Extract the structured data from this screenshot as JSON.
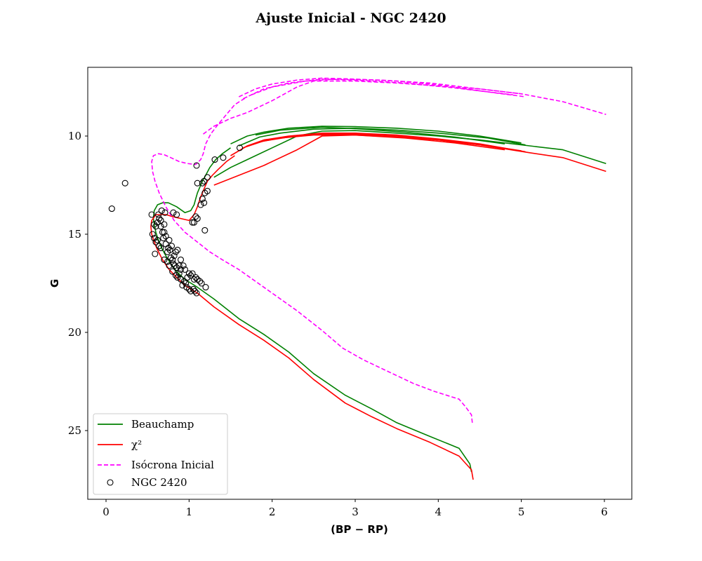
{
  "chart_data": {
    "type": "line",
    "title": "Ajuste Inicial - NGC 2420",
    "xlabel": "(BP − RP)",
    "ylabel": "G",
    "xlim": [
      -0.22,
      6.33
    ],
    "ylim": [
      28.5,
      6.5
    ],
    "y_inverted": true,
    "grid": false,
    "legend_position": "lower-left",
    "xticks": [
      0,
      1,
      2,
      3,
      4,
      5,
      6
    ],
    "yticks": [
      10,
      15,
      20,
      25
    ],
    "colors": {
      "beauchamp": "#008000",
      "chi2": "#ff0000",
      "initial": "#ff00ff",
      "data": "#000000"
    },
    "series": [
      {
        "name": "Beauchamp",
        "style": "solid",
        "color": "#008000",
        "segments": [
          {
            "x": [
              4.4,
              4.38,
              4.25,
              3.9,
              3.5,
              3.2,
              2.88,
              2.5,
              2.2,
              1.9,
              1.6,
              1.3,
              1.1,
              0.95,
              0.85,
              0.78,
              0.72,
              0.67,
              0.63,
              0.6,
              0.58,
              0.57,
              0.58,
              0.62,
              0.68,
              0.75,
              0.85,
              0.95,
              1.02,
              1.06,
              1.08,
              1.1,
              1.13,
              1.16,
              1.2,
              1.25,
              1.32,
              1.4,
              1.5
            ],
            "y": [
              27.1,
              26.7,
              25.9,
              25.3,
              24.6,
              23.9,
              23.2,
              22.1,
              21.0,
              20.1,
              19.3,
              18.3,
              17.7,
              17.3,
              16.9,
              16.5,
              16.1,
              15.7,
              15.3,
              14.9,
              14.5,
              14.2,
              13.8,
              13.5,
              13.4,
              13.4,
              13.6,
              13.9,
              13.8,
              13.5,
              13.2,
              12.9,
              12.6,
              12.3,
              12.0,
              11.6,
              11.2,
              10.9,
              10.6
            ]
          },
          {
            "x": [
              1.3,
              1.5,
              1.7,
              2.0,
              2.3,
              2.6,
              3.0,
              3.5,
              4.0,
              4.5,
              5.1,
              5.5,
              6.02
            ],
            "y": [
              12.1,
              11.6,
              11.2,
              10.6,
              10.0,
              9.75,
              9.72,
              9.85,
              10.0,
              10.2,
              10.5,
              10.7,
              11.4
            ]
          },
          {
            "x": [
              1.5,
              1.7,
              1.9,
              2.2,
              2.6,
              3.0,
              3.5,
              4.0,
              4.5,
              5.0
            ],
            "y": [
              10.4,
              10.0,
              9.8,
              9.6,
              9.5,
              9.52,
              9.6,
              9.75,
              10.0,
              10.35
            ]
          },
          {
            "x": [
              1.6,
              1.85,
              2.1,
              2.5,
              3.0,
              3.5,
              4.0,
              4.6,
              5.05
            ],
            "y": [
              10.5,
              10.05,
              9.85,
              9.65,
              9.6,
              9.7,
              9.85,
              10.1,
              10.45
            ]
          },
          {
            "x": [
              1.8,
              2.1,
              2.6,
              3.0,
              3.6,
              4.2,
              4.8
            ],
            "y": [
              9.95,
              9.7,
              9.55,
              9.62,
              9.8,
              10.05,
              10.4
            ]
          }
        ]
      },
      {
        "name": "χ²",
        "style": "solid",
        "color": "#ff0000",
        "segments": [
          {
            "x": [
              4.42,
              4.4,
              4.25,
              3.9,
              3.5,
              3.2,
              2.88,
              2.5,
              2.2,
              1.9,
              1.6,
              1.3,
              1.1,
              0.95,
              0.85,
              0.76,
              0.68,
              0.62,
              0.58,
              0.55,
              0.54,
              0.55,
              0.6,
              0.66,
              0.72,
              0.8,
              0.9,
              1.0,
              1.06,
              1.1,
              1.14,
              1.18,
              1.22,
              1.28,
              1.35,
              1.45,
              1.55
            ],
            "y": [
              27.5,
              27.0,
              26.3,
              25.6,
              24.9,
              24.3,
              23.6,
              22.4,
              21.3,
              20.4,
              19.6,
              18.7,
              18.0,
              17.6,
              17.2,
              16.8,
              16.3,
              15.8,
              15.4,
              15.0,
              14.6,
              14.3,
              14.0,
              14.0,
              14.0,
              14.1,
              14.2,
              14.3,
              14.0,
              13.6,
              13.1,
              12.7,
              12.3,
              12.0,
              11.7,
              11.3,
              11.0
            ]
          },
          {
            "x": [
              1.3,
              1.6,
              1.9,
              2.3,
              2.6,
              3.0,
              3.5,
              4.0,
              4.5,
              5.1,
              5.5,
              6.02
            ],
            "y": [
              12.5,
              12.0,
              11.5,
              10.7,
              10.0,
              9.95,
              10.05,
              10.2,
              10.45,
              10.85,
              11.1,
              11.8
            ]
          },
          {
            "x": [
              1.5,
              1.7,
              1.9,
              2.2,
              2.6,
              3.0,
              3.5,
              4.0,
              4.5,
              5.05
            ],
            "y": [
              11.0,
              10.5,
              10.2,
              10.0,
              9.85,
              9.85,
              9.95,
              10.15,
              10.4,
              10.8
            ]
          },
          {
            "x": [
              1.65,
              1.9,
              2.2,
              2.6,
              3.0,
              3.5,
              4.0,
              4.6,
              5.0
            ],
            "y": [
              10.6,
              10.25,
              10.05,
              9.9,
              9.9,
              10.0,
              10.2,
              10.5,
              10.75
            ]
          },
          {
            "x": [
              1.85,
              2.1,
              2.5,
              3.0,
              3.6,
              4.2,
              4.8
            ],
            "y": [
              10.3,
              10.1,
              9.95,
              9.95,
              10.1,
              10.35,
              10.7
            ]
          }
        ]
      },
      {
        "name": "Isócrona Inicial",
        "style": "dashed",
        "color": "#ff00ff",
        "segments": [
          {
            "x": [
              4.41,
              4.4,
              4.33,
              4.25,
              3.95,
              3.7,
              3.4,
              3.1,
              2.85,
              2.6,
              2.3,
              2.0,
              1.8,
              1.6,
              1.4,
              1.25,
              1.1,
              0.95,
              0.82,
              0.72,
              0.64,
              0.59,
              0.56,
              0.55,
              0.57,
              0.63,
              0.7,
              0.78,
              0.88,
              0.98,
              1.08,
              1.14,
              1.17,
              1.2,
              1.26,
              1.35,
              1.45,
              1.55,
              1.7
            ],
            "y": [
              24.6,
              24.2,
              23.8,
              23.4,
              23.0,
              22.6,
              22.0,
              21.4,
              20.8,
              19.9,
              18.9,
              18.0,
              17.4,
              16.8,
              16.3,
              15.9,
              15.4,
              14.9,
              14.3,
              13.6,
              12.9,
              12.3,
              11.8,
              11.3,
              11.0,
              10.9,
              10.95,
              11.1,
              11.3,
              11.4,
              11.45,
              11.2,
              10.9,
              10.4,
              9.9,
              9.4,
              8.9,
              8.4,
              8.0
            ]
          },
          {
            "x": [
              1.17,
              1.3,
              1.5,
              1.7,
              2.0,
              2.3,
              2.5,
              3.0,
              3.5,
              4.0,
              4.5,
              5.0,
              5.5,
              6.02
            ],
            "y": [
              9.9,
              9.5,
              9.1,
              8.8,
              8.2,
              7.5,
              7.2,
              7.2,
              7.3,
              7.45,
              7.6,
              7.85,
              8.25,
              8.9
            ]
          },
          {
            "x": [
              1.6,
              1.8,
              2.0,
              2.3,
              2.6,
              3.0,
              3.5,
              4.0,
              4.5,
              5.05
            ],
            "y": [
              8.0,
              7.6,
              7.35,
              7.15,
              7.05,
              7.1,
              7.2,
              7.4,
              7.7,
              8.0
            ]
          },
          {
            "x": [
              1.65,
              1.9,
              2.2,
              2.6,
              3.0,
              3.6,
              4.2,
              4.9
            ],
            "y": [
              8.1,
              7.6,
              7.3,
              7.1,
              7.15,
              7.3,
              7.55,
              7.9
            ]
          },
          {
            "x": [
              1.75,
              2.0,
              2.4,
              2.8,
              3.3,
              3.9,
              4.5,
              5.0
            ],
            "y": [
              7.9,
              7.5,
              7.2,
              7.1,
              7.15,
              7.3,
              7.6,
              7.85
            ]
          }
        ]
      }
    ],
    "scatter": {
      "name": "NGC 2420",
      "marker": "open-circle",
      "color": "#000000",
      "points": [
        [
          0.07,
          13.7
        ],
        [
          0.23,
          12.4
        ],
        [
          1.09,
          11.5
        ],
        [
          1.31,
          11.2
        ],
        [
          1.41,
          11.1
        ],
        [
          1.61,
          10.6
        ],
        [
          1.1,
          12.4
        ],
        [
          1.16,
          12.4
        ],
        [
          1.18,
          12.3
        ],
        [
          1.22,
          12.1
        ],
        [
          1.19,
          12.9
        ],
        [
          1.22,
          12.8
        ],
        [
          1.16,
          13.2
        ],
        [
          1.18,
          13.4
        ],
        [
          1.14,
          13.5
        ],
        [
          1.08,
          14.1
        ],
        [
          1.1,
          14.2
        ],
        [
          1.06,
          14.4
        ],
        [
          1.04,
          14.4
        ],
        [
          1.19,
          14.8
        ],
        [
          0.85,
          14.0
        ],
        [
          0.81,
          13.9
        ],
        [
          0.71,
          13.9
        ],
        [
          0.67,
          13.8
        ],
        [
          0.55,
          14.0
        ],
        [
          0.58,
          14.5
        ],
        [
          0.6,
          14.6
        ],
        [
          0.62,
          14.4
        ],
        [
          0.64,
          14.2
        ],
        [
          0.66,
          14.6
        ],
        [
          0.68,
          14.9
        ],
        [
          0.7,
          14.9
        ],
        [
          0.56,
          15.0
        ],
        [
          0.58,
          15.2
        ],
        [
          0.6,
          15.4
        ],
        [
          0.62,
          15.3
        ],
        [
          0.64,
          15.6
        ],
        [
          0.66,
          15.7
        ],
        [
          0.69,
          15.2
        ],
        [
          0.72,
          15.5
        ],
        [
          0.74,
          15.9
        ],
        [
          0.75,
          15.7
        ],
        [
          0.77,
          15.8
        ],
        [
          0.78,
          16.2
        ],
        [
          0.8,
          16.3
        ],
        [
          0.82,
          16.1
        ],
        [
          0.84,
          15.9
        ],
        [
          0.86,
          15.8
        ],
        [
          0.59,
          16.0
        ],
        [
          0.7,
          16.3
        ],
        [
          0.74,
          16.4
        ],
        [
          0.76,
          16.6
        ],
        [
          0.81,
          16.5
        ],
        [
          0.83,
          16.6
        ],
        [
          0.85,
          16.7
        ],
        [
          0.88,
          16.6
        ],
        [
          0.9,
          16.8
        ],
        [
          0.93,
          16.6
        ],
        [
          0.95,
          16.8
        ],
        [
          0.8,
          16.9
        ],
        [
          0.84,
          17.1
        ],
        [
          0.86,
          17.2
        ],
        [
          0.88,
          17.0
        ],
        [
          0.9,
          17.3
        ],
        [
          0.94,
          17.4
        ],
        [
          0.96,
          17.5
        ],
        [
          0.98,
          17.2
        ],
        [
          1.0,
          17.0
        ],
        [
          1.02,
          17.1
        ],
        [
          1.04,
          17.0
        ],
        [
          1.06,
          17.3
        ],
        [
          1.08,
          17.2
        ],
        [
          1.1,
          17.3
        ],
        [
          1.13,
          17.4
        ],
        [
          1.15,
          17.5
        ],
        [
          1.2,
          17.7
        ],
        [
          0.92,
          17.6
        ],
        [
          0.97,
          17.7
        ],
        [
          1.0,
          17.8
        ],
        [
          1.02,
          17.9
        ],
        [
          1.05,
          17.8
        ],
        [
          1.07,
          17.9
        ],
        [
          1.09,
          18.0
        ],
        [
          0.63,
          14.0
        ],
        [
          0.66,
          14.3
        ],
        [
          0.7,
          14.5
        ],
        [
          0.72,
          15.1
        ],
        [
          0.76,
          15.3
        ],
        [
          0.79,
          15.6
        ],
        [
          0.9,
          16.3
        ]
      ]
    },
    "legend": [
      {
        "label": "Beauchamp",
        "kind": "line",
        "color": "#008000",
        "style": "solid"
      },
      {
        "label": "χ²",
        "kind": "line",
        "color": "#ff0000",
        "style": "solid"
      },
      {
        "label": "Isócrona Inicial",
        "kind": "line",
        "color": "#ff00ff",
        "style": "dashed"
      },
      {
        "label": "NGC 2420",
        "kind": "marker",
        "color": "#000000",
        "style": "open-circle"
      }
    ]
  }
}
